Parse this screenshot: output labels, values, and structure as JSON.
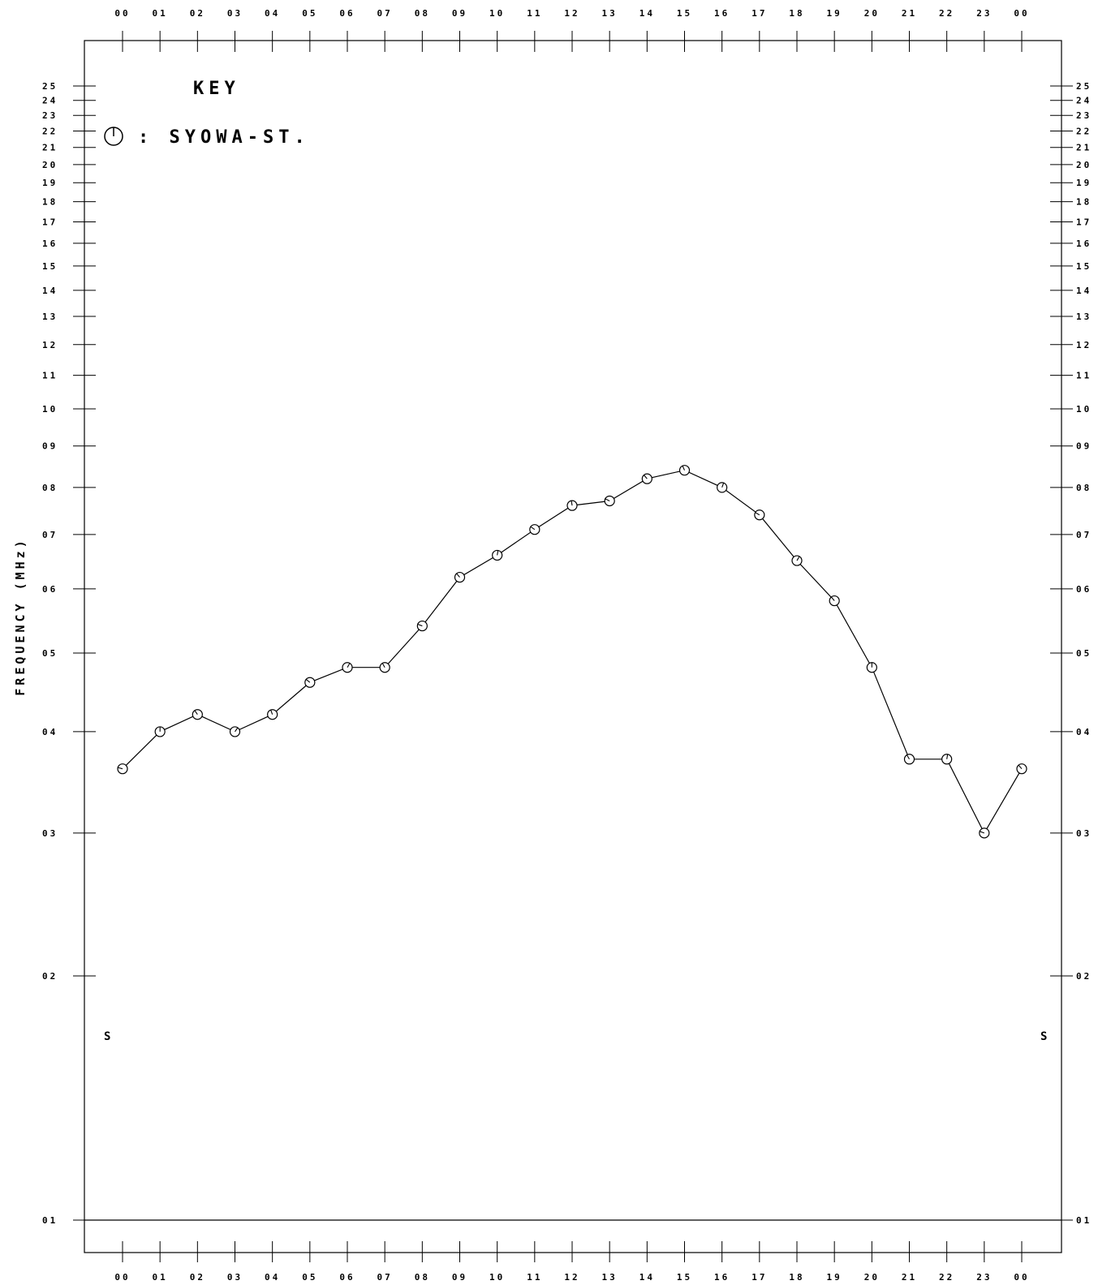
{
  "chart_data": {
    "type": "line",
    "ylabel": "FREQUENCY (MHz)",
    "key": {
      "title": "KEY",
      "entries": [
        {
          "symbol": "circle-with-tick",
          "label": ": SYOWA-ST."
        }
      ]
    },
    "x_tick_labels": [
      "00",
      "01",
      "02",
      "03",
      "04",
      "05",
      "06",
      "07",
      "08",
      "09",
      "10",
      "11",
      "12",
      "13",
      "14",
      "15",
      "16",
      "17",
      "18",
      "19",
      "20",
      "21",
      "22",
      "23",
      "00"
    ],
    "y_tick_labels": [
      "01",
      "02",
      "03",
      "04",
      "05",
      "06",
      "07",
      "08",
      "09",
      "10",
      "11",
      "12",
      "13",
      "14",
      "15",
      "16",
      "17",
      "18",
      "19",
      "20",
      "21",
      "22",
      "23",
      "24",
      "25"
    ],
    "y_scale": "log",
    "ylim": [
      1,
      25
    ],
    "xlim": [
      0,
      24
    ],
    "series": [
      {
        "name": "SYOWA-ST.",
        "x": [
          0,
          1,
          2,
          3,
          4,
          5,
          6,
          7,
          8,
          9,
          10,
          11,
          12,
          13,
          14,
          15,
          16,
          17,
          18,
          19,
          20,
          21,
          22,
          23,
          24
        ],
        "values": [
          3.6,
          4.0,
          4.2,
          4.0,
          4.2,
          4.6,
          4.8,
          4.8,
          5.4,
          6.2,
          6.6,
          7.1,
          7.6,
          7.7,
          8.2,
          8.4,
          8.0,
          7.4,
          6.5,
          5.8,
          4.8,
          3.7,
          3.7,
          3.0,
          3.6
        ]
      }
    ],
    "end_markers": {
      "left": "S",
      "right": "S"
    }
  }
}
